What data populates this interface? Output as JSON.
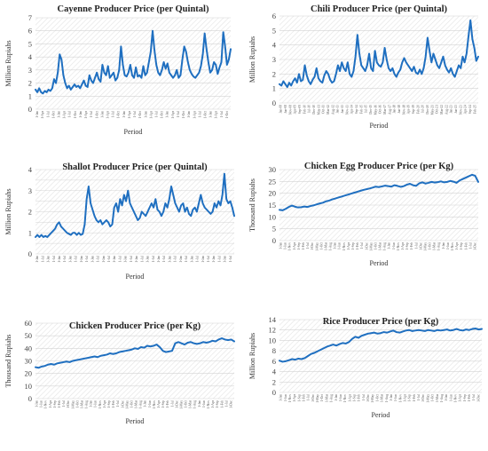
{
  "chart_data": [
    {
      "type": "line",
      "title": "Cayenne Producer Price (per Quintal)",
      "xlabel": "Period",
      "ylabel": "Million Rupiahs",
      "ylim": [
        0,
        7
      ],
      "yticks": [
        0,
        1,
        2,
        3,
        4,
        5,
        6,
        7
      ],
      "xtick_labels": [
        "1-Jan",
        "1-Apr",
        "1-Jul",
        "1-Oct",
        "1-Jan",
        "1-Apr",
        "1-Jul",
        "1-Oct",
        "1-Jan",
        "1-Apr",
        "1-Jul",
        "1-Oct",
        "1-Jan",
        "1-Apr",
        "1-Jul",
        "1-Oct",
        "1-Jan",
        "1-Apr",
        "1-Jul",
        "1-Oct",
        "1-Jan",
        "1-Apr",
        "1-Jul",
        "1-Oct",
        "1-Jan",
        "1-Apr",
        "1-Jul",
        "1-Oct",
        "1-Jan",
        "1-Apr",
        "1-Jul",
        "1-Oct",
        "1-Jan",
        "1-Apr",
        "1-Jul",
        "1-Oct"
      ],
      "series": [
        {
          "values": [
            1.5,
            1.3,
            1.6,
            1.3,
            1.2,
            1.4,
            1.3,
            1.5,
            1.4,
            1.6,
            2.3,
            2.0,
            2.8,
            4.2,
            3.8,
            2.6,
            2.0,
            1.6,
            1.8,
            1.5,
            1.7,
            1.9,
            1.7,
            1.8,
            1.6,
            1.9,
            2.2,
            1.8,
            1.7,
            2.6,
            2.2,
            2.0,
            2.4,
            2.8,
            2.3,
            2.1,
            3.4,
            2.8,
            2.6,
            3.3,
            2.4,
            2.6,
            2.8,
            2.2,
            2.4,
            3.0,
            4.8,
            3.4,
            2.6,
            2.5,
            2.8,
            3.4,
            2.6,
            2.4,
            3.2,
            2.5,
            2.6,
            2.4,
            3.3,
            2.6,
            2.8,
            3.6,
            4.4,
            6.0,
            4.5,
            3.4,
            2.8,
            2.6,
            3.0,
            3.6,
            3.1,
            3.5,
            2.8,
            2.6,
            2.4,
            2.6,
            3.0,
            2.4,
            2.6,
            3.8,
            4.8,
            4.4,
            3.6,
            3.0,
            2.7,
            2.5,
            2.4,
            2.6,
            2.8,
            3.3,
            4.2,
            5.8,
            4.6,
            3.6,
            2.8,
            3.0,
            3.6,
            3.4,
            2.7,
            3.2,
            3.6,
            5.9,
            4.8,
            3.4,
            3.8,
            4.6
          ]
        }
      ]
    },
    {
      "type": "line",
      "title": "Chili Producer Price (per Quintal)",
      "xlabel": "Period",
      "ylabel": "Million Rupiahs",
      "ylim": [
        0,
        6
      ],
      "yticks": [
        0,
        1,
        2,
        3,
        4,
        5,
        6
      ],
      "xtick_labels": [
        "Jan-08",
        "Jun-08",
        "Nov-08",
        "Apr-09",
        "Sep-09",
        "Feb-10",
        "Jul-10",
        "Dec-10",
        "May-11",
        "Oct-11",
        "Mar-12",
        "Aug-12",
        "Jan-13",
        "Jun-13",
        "Nov-13",
        "Apr-14",
        "Sep-14",
        "Feb-15",
        "Jul-15",
        "Dec-15",
        "May-16",
        "Oct-16",
        "Mar-17",
        "Aug-17",
        "Jan-18",
        "Jun-18",
        "Nov-18",
        "Apr-19",
        "Sep-19",
        "Feb-20",
        "Jul-20",
        "Dec-20",
        "May-21",
        "Oct-21",
        "Mar-22",
        "Aug-22",
        "Jan-23",
        "Jun-23",
        "Nov-23",
        "Apr-24",
        "Sep-24",
        "Feb-25"
      ],
      "series": [
        {
          "values": [
            1.3,
            1.2,
            1.5,
            1.3,
            1.1,
            1.4,
            1.2,
            1.5,
            1.7,
            1.4,
            2.0,
            1.5,
            1.6,
            2.6,
            1.9,
            1.5,
            1.3,
            1.6,
            1.8,
            2.4,
            1.7,
            1.5,
            1.4,
            1.9,
            2.2,
            2.0,
            1.6,
            1.4,
            1.5,
            2.0,
            2.6,
            2.2,
            2.8,
            2.4,
            2.2,
            2.8,
            2.0,
            1.8,
            2.2,
            3.2,
            4.7,
            3.4,
            2.6,
            2.4,
            2.2,
            2.6,
            3.4,
            2.4,
            2.2,
            3.6,
            2.8,
            2.6,
            2.5,
            2.8,
            3.8,
            3.0,
            2.4,
            2.2,
            2.4,
            2.0,
            1.8,
            2.1,
            2.3,
            2.8,
            3.1,
            2.8,
            2.6,
            2.4,
            2.2,
            2.5,
            2.1,
            2.0,
            2.3,
            2.0,
            2.4,
            3.2,
            4.5,
            3.6,
            2.8,
            3.4,
            3.0,
            2.6,
            2.4,
            2.8,
            3.2,
            2.6,
            2.3,
            2.1,
            2.4,
            2.0,
            1.8,
            2.2,
            2.6,
            2.4,
            3.2,
            2.8,
            3.4,
            4.6,
            5.7,
            4.4,
            3.8,
            2.9,
            3.2
          ]
        }
      ]
    },
    {
      "type": "line",
      "title": "Shallot Producer Price (per Quintal)",
      "xlabel": "Period",
      "ylabel": "Million Rupiahs",
      "ylim": [
        0,
        4
      ],
      "yticks": [
        0,
        0.5,
        1,
        1.5,
        2,
        2.5,
        3,
        3.5,
        4
      ],
      "ytick_labels": [
        "0",
        "",
        "1",
        "",
        "2",
        "",
        "3",
        "",
        "4"
      ],
      "xtick_labels": [
        "1-Jan",
        "1-Jul",
        "1-Jan",
        "1-Jul",
        "1-Jan",
        "1-Jul",
        "1-Jan",
        "1-Jul",
        "1-Jan",
        "1-Jul",
        "1-Jan",
        "1-Jul",
        "1-Jan",
        "1-Jul",
        "1-Jan",
        "1-Jul",
        "1-Jan",
        "1-Jul",
        "1-Jan",
        "1-Jul",
        "1-Jan",
        "1-Jul",
        "1-Jan",
        "1-Jul",
        "1-Jan",
        "1-Jul",
        "1-Jan",
        "1-Jul",
        "1-Jan",
        "1-Jul",
        "1-Jan",
        "1-Jul",
        "1-Jan",
        "1-Jul",
        "1-Jan",
        "1-Jul"
      ],
      "series": [
        {
          "values": [
            0.8,
            0.9,
            0.8,
            0.9,
            0.8,
            0.85,
            0.8,
            0.9,
            1.0,
            1.1,
            1.2,
            1.4,
            1.5,
            1.3,
            1.2,
            1.1,
            1.0,
            0.95,
            0.9,
            1.0,
            1.0,
            0.9,
            1.0,
            0.9,
            0.95,
            1.4,
            2.6,
            3.2,
            2.4,
            2.1,
            1.8,
            1.6,
            1.5,
            1.6,
            1.4,
            1.5,
            1.6,
            1.5,
            1.3,
            1.4,
            2.2,
            2.4,
            2.0,
            2.6,
            2.3,
            2.8,
            2.5,
            3.0,
            2.4,
            2.2,
            2.0,
            1.8,
            1.6,
            1.7,
            2.0,
            1.9,
            1.8,
            2.0,
            2.2,
            2.4,
            2.2,
            2.6,
            2.1,
            2.0,
            1.8,
            2.0,
            2.4,
            2.2,
            2.6,
            3.2,
            2.8,
            2.4,
            2.2,
            2.0,
            2.3,
            2.4,
            2.0,
            2.2,
            1.9,
            1.8,
            2.1,
            2.2,
            2.0,
            2.4,
            2.8,
            2.4,
            2.2,
            2.1,
            2.0,
            1.9,
            2.0,
            2.4,
            2.2,
            2.5,
            2.3,
            2.8,
            3.8,
            2.6,
            2.4,
            2.5,
            2.2,
            1.8
          ]
        }
      ]
    },
    {
      "type": "line",
      "title": "Chicken Egg Producer Price (per Kg)",
      "xlabel": "Period",
      "ylabel": "Thousand Rupiahs",
      "ylim": [
        0,
        30
      ],
      "yticks": [
        0,
        5,
        10,
        15,
        20,
        25,
        30
      ],
      "xtick_labels": [
        "1-Jan",
        "1-Jun",
        "1-Nov",
        "1-Apr",
        "1-Sep",
        "1-Feb",
        "1-Jul",
        "1-Dec",
        "1-May",
        "1-Oct",
        "1-Mar",
        "1-Aug",
        "1-Jan",
        "1-Jun",
        "1-Nov",
        "1-Apr",
        "1-Sep",
        "1-Feb",
        "1-Jul",
        "1-Dec",
        "1-May",
        "1-Oct",
        "1-Mar",
        "1-Aug",
        "1-Jan",
        "1-Jun",
        "1-Nov",
        "1-Apr",
        "1-Sep",
        "1-Feb",
        "1-Jul",
        "1-Dec",
        "1-May",
        "1-Oct",
        "1-Mar",
        "1-Aug",
        "1-Jan",
        "1-Jun",
        "1-Nov",
        "1-Apr",
        "1-Sep",
        "1-Feb",
        "1-Jul",
        "1-Dec"
      ],
      "series": [
        {
          "values": [
            13.0,
            12.8,
            13.4,
            14.2,
            14.8,
            14.3,
            14.0,
            14.1,
            14.4,
            14.2,
            14.6,
            14.9,
            15.3,
            15.7,
            16.0,
            16.6,
            16.9,
            17.4,
            17.8,
            18.2,
            18.6,
            19.0,
            19.4,
            19.8,
            20.2,
            20.6,
            21.0,
            21.4,
            21.7,
            22.0,
            22.4,
            22.8,
            22.6,
            22.9,
            23.2,
            23.0,
            22.8,
            23.4,
            23.1,
            22.7,
            23.0,
            23.6,
            24.0,
            23.4,
            23.1,
            24.2,
            24.6,
            24.1,
            24.4,
            24.8,
            24.5,
            24.7,
            25.0,
            24.6,
            24.8,
            25.2,
            24.9,
            24.4,
            25.4,
            26.0,
            26.6,
            27.2,
            27.8,
            27.4,
            24.8
          ]
        }
      ]
    },
    {
      "type": "line",
      "title": "Chicken Producer Price (per Kg)",
      "xlabel": "Period",
      "ylabel": "Thousand Rupiahs",
      "ylim": [
        0,
        60
      ],
      "yticks": [
        0,
        10,
        20,
        30,
        40,
        50,
        60
      ],
      "xtick_labels": [
        "1-Jan",
        "1-Jun",
        "1-Nov",
        "1-Apr",
        "1-Sep",
        "1-Feb",
        "1-Jul",
        "1-Dec",
        "1-May",
        "1-Oct",
        "1-Mar",
        "1-Aug",
        "1-Jan",
        "1-Jun",
        "1-Nov",
        "1-Apr",
        "1-Sep",
        "1-Feb",
        "1-Jul",
        "1-Dec",
        "1-May",
        "1-Oct",
        "1-Mar",
        "1-Aug",
        "1-Jan",
        "1-Jun",
        "1-Nov",
        "1-Apr",
        "1-Sep",
        "1-Feb",
        "1-Jul",
        "1-Dec",
        "1-May",
        "1-Oct",
        "1-Mar",
        "1-Aug",
        "1-Jan",
        "1-Jun",
        "1-Nov",
        "1-Apr",
        "1-Sep",
        "1-Feb",
        "1-Jul",
        "1-Dec"
      ],
      "series": [
        {
          "values": [
            25,
            24.5,
            25.5,
            26,
            27,
            27.5,
            27,
            28,
            28.5,
            29,
            29.5,
            29,
            30,
            30.5,
            31,
            31.5,
            32,
            32.5,
            33,
            33.5,
            33,
            34,
            34.5,
            35,
            36,
            35.5,
            36,
            37,
            37.5,
            38,
            38.5,
            39,
            40,
            39.5,
            41,
            40.5,
            42,
            41.5,
            42,
            43,
            41,
            38,
            37,
            37.5,
            38,
            44,
            45,
            44,
            43,
            44.5,
            45,
            44,
            43.5,
            44,
            45,
            44.5,
            45,
            46,
            45.5,
            47,
            48,
            47,
            46.5,
            47,
            45.5
          ]
        }
      ]
    },
    {
      "type": "line",
      "title": "Rice Producer Price (per Kg)",
      "xlabel": "Period",
      "ylabel": "Million Rupiahs",
      "ylim": [
        0,
        14
      ],
      "yticks": [
        0,
        2,
        4,
        6,
        8,
        10,
        12,
        14
      ],
      "xtick_labels": [
        "1-Jan",
        "1-Jun",
        "1-Nov",
        "1-Apr",
        "1-Sep",
        "1-Feb",
        "1-Jul",
        "1-Dec",
        "1-May",
        "1-Oct",
        "1-Mar",
        "1-Aug",
        "1-Jan",
        "1-Jun",
        "1-Nov",
        "1-Apr",
        "1-Sep",
        "1-Feb",
        "1-Jul",
        "1-Dec",
        "1-May",
        "1-Oct",
        "1-Mar",
        "1-Aug",
        "1-Jan",
        "1-Jun",
        "1-Nov",
        "1-Apr",
        "1-Sep",
        "1-Feb",
        "1-Jul",
        "1-Dec",
        "1-May",
        "1-Oct",
        "1-Mar",
        "1-Aug",
        "1-Jan",
        "1-Jun",
        "1-Nov",
        "1-Apr",
        "1-Sep",
        "1-Feb",
        "1-Jul",
        "1-Dec"
      ],
      "series": [
        {
          "values": [
            6.1,
            5.9,
            6.0,
            6.2,
            6.4,
            6.3,
            6.5,
            6.4,
            6.6,
            7.0,
            7.4,
            7.6,
            7.9,
            8.2,
            8.5,
            8.8,
            9.0,
            9.2,
            9.0,
            9.3,
            9.5,
            9.4,
            9.7,
            10.3,
            10.7,
            10.5,
            10.9,
            11.1,
            11.3,
            11.4,
            11.5,
            11.3,
            11.4,
            11.6,
            11.5,
            11.7,
            11.9,
            11.6,
            11.5,
            11.7,
            11.9,
            12.0,
            11.8,
            11.9,
            12.0,
            11.9,
            11.8,
            12.0,
            11.9,
            11.8,
            12.0,
            11.9,
            12.0,
            12.1,
            11.9,
            12.0,
            12.2,
            12.0,
            11.9,
            12.1,
            12.0,
            12.2,
            12.3,
            12.1,
            12.2
          ]
        }
      ]
    }
  ]
}
